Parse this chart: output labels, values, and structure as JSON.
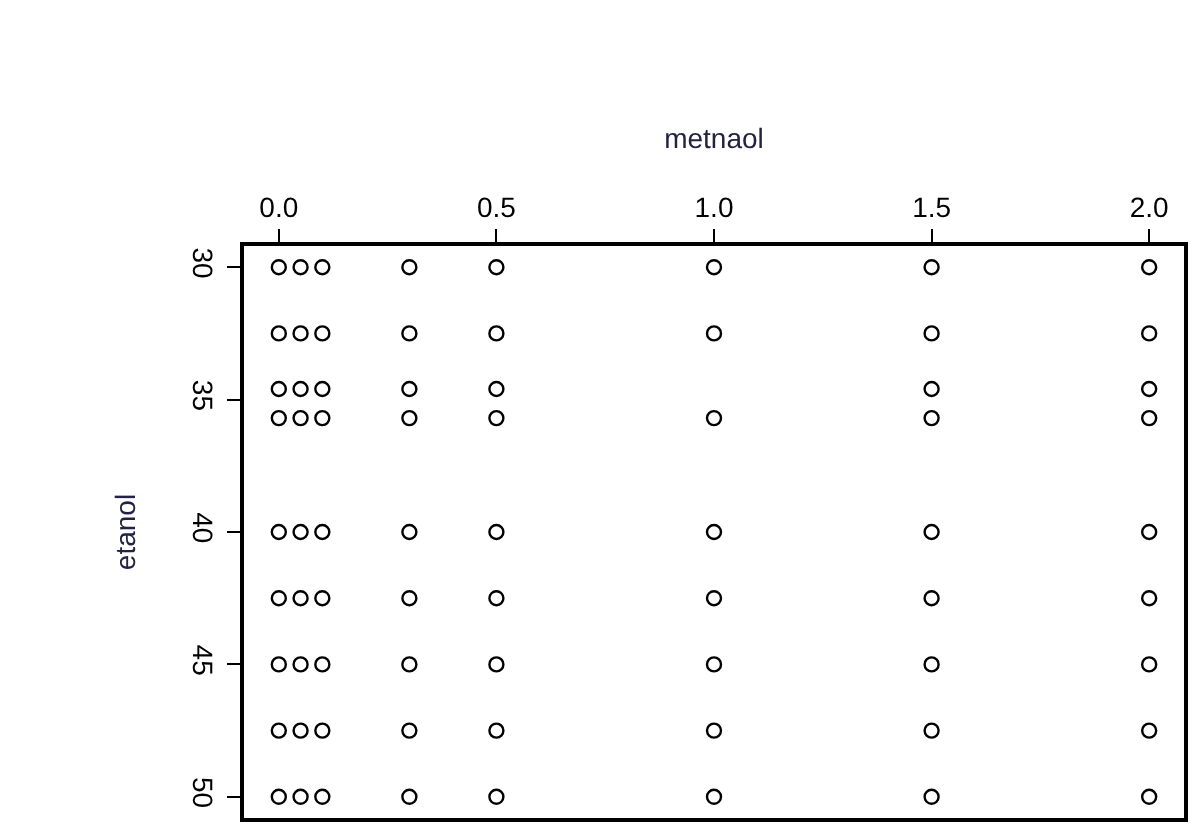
{
  "chart_data": {
    "type": "scatter",
    "xlabel": "metnaol",
    "ylabel": "etanol",
    "x": [
      0,
      0.05,
      0.1,
      0.3,
      0.5,
      1.0,
      1.5,
      2.0,
      0,
      0.05,
      0.1,
      0.3,
      0.5,
      1.0,
      1.5,
      2.0,
      0,
      0.05,
      0.1,
      0.3,
      0.5,
      1.5,
      2.0,
      0,
      0.05,
      0.1,
      0.3,
      0.5,
      1.0,
      1.5,
      2.0,
      0,
      0.05,
      0.1,
      0.3,
      0.5,
      1.0,
      1.5,
      2.0,
      0,
      0.05,
      0.1,
      0.3,
      0.5,
      1.0,
      1.5,
      2.0,
      0,
      0.05,
      0.1,
      0.3,
      0.5,
      1.0,
      1.5,
      2.0,
      0,
      0.05,
      0.1,
      0.3,
      0.5,
      1.0,
      1.5,
      2.0,
      0,
      0.05,
      0.1,
      0.3,
      0.5,
      1.0,
      1.5,
      2.0
    ],
    "values": [
      30,
      30,
      30,
      30,
      30,
      30,
      30,
      30,
      32.5,
      32.5,
      32.5,
      32.5,
      32.5,
      32.5,
      32.5,
      32.5,
      34.6,
      34.6,
      34.6,
      34.6,
      34.6,
      34.6,
      34.6,
      35.7,
      35.7,
      35.7,
      35.7,
      35.7,
      35.7,
      35.7,
      35.7,
      40,
      40,
      40,
      40,
      40,
      40,
      40,
      40,
      42.5,
      42.5,
      42.5,
      42.5,
      42.5,
      42.5,
      42.5,
      42.5,
      45,
      45,
      45,
      45,
      45,
      45,
      45,
      45,
      47.5,
      47.5,
      47.5,
      47.5,
      47.5,
      47.5,
      47.5,
      47.5,
      50,
      50,
      50,
      50,
      50,
      50,
      50,
      50
    ],
    "color": "#000000",
    "marker": "circle",
    "xlim": [
      -0.08,
      2.08
    ],
    "xticks": [
      {
        "value": 0,
        "label": "0.0"
      },
      0.5,
      {
        "value": 1,
        "label": "1.0"
      },
      1.5,
      {
        "value": 2,
        "label": "2.0"
      }
    ],
    "ylim": [
      50.8,
      29.2
    ],
    "yticks": [
      30,
      35,
      40,
      45,
      50
    ]
  }
}
